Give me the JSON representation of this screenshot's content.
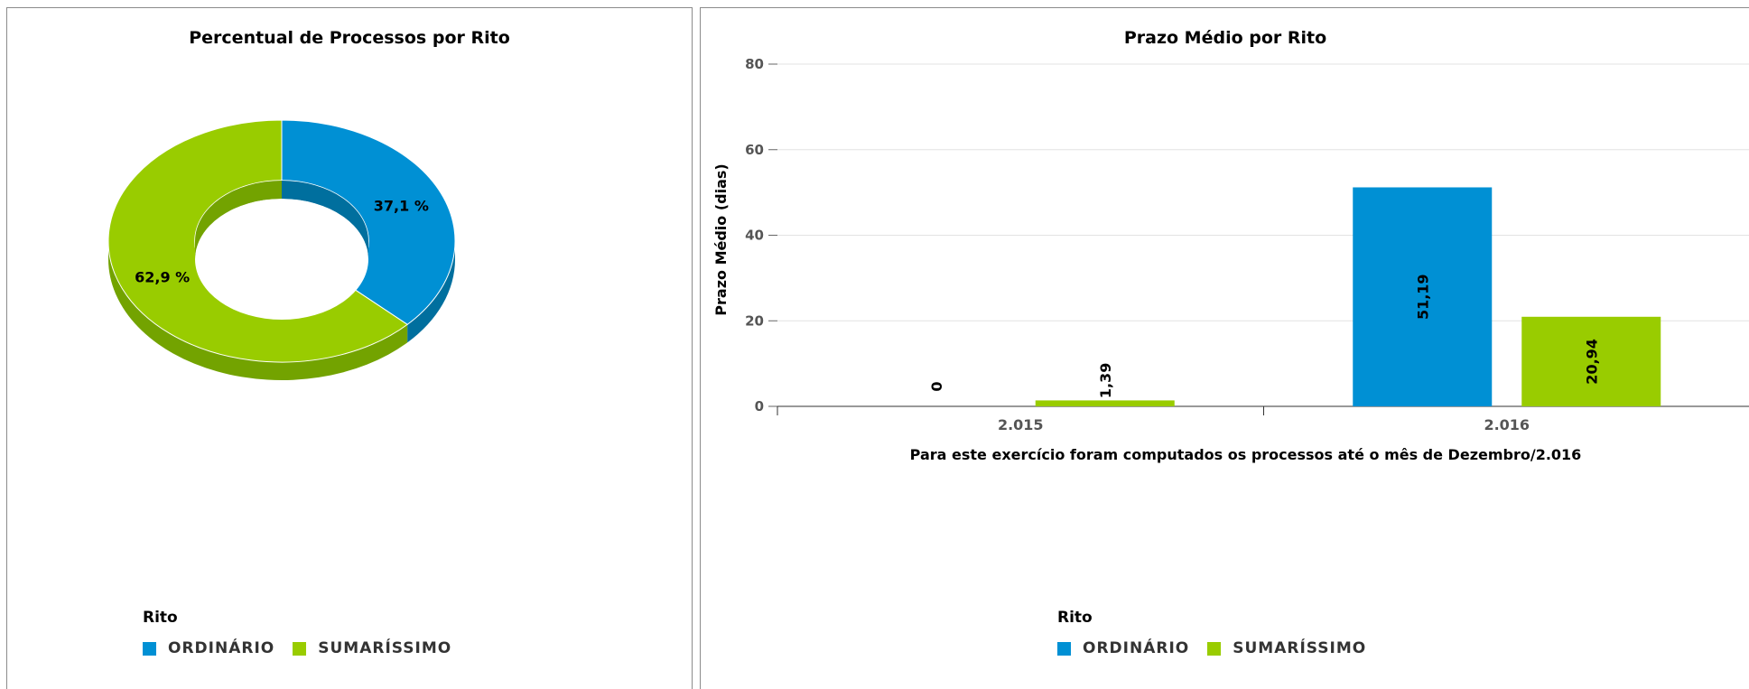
{
  "colors": {
    "ordinario": "#0090d4",
    "sumarissimo": "#99cc00"
  },
  "chart_data": [
    {
      "type": "pie",
      "variant": "donut-3d",
      "title": "Percentual de Processos por Rito",
      "slices": [
        {
          "name": "ORDINÁRIO",
          "value": 37.1,
          "label": "37,1 %"
        },
        {
          "name": "SUMARÍSSIMO",
          "value": 62.9,
          "label": "62,9 %"
        }
      ],
      "legend": {
        "title": "Rito",
        "placement": "bottom-left",
        "items": [
          "ORDINÁRIO",
          "SUMARÍSSIMO"
        ]
      }
    },
    {
      "type": "bar",
      "title": "Prazo Médio por Rito",
      "categories": [
        "2.015",
        "2.016"
      ],
      "series": [
        {
          "name": "ORDINÁRIO",
          "values": [
            0,
            51.19
          ],
          "labels": [
            "0",
            "51,19"
          ]
        },
        {
          "name": "SUMARÍSSIMO",
          "values": [
            1.39,
            20.94
          ],
          "labels": [
            "1,39",
            "20,94"
          ]
        }
      ],
      "ylabel": "Prazo Médio (dias)",
      "xlabel": "Para este exercício foram computados os processos até o mês de Dezembro/2.016",
      "ylim": [
        0,
        80
      ],
      "yticks": [
        "0",
        "20",
        "40",
        "60",
        "80"
      ],
      "grid": true,
      "legend": {
        "title": "Rito",
        "placement": "bottom-left",
        "items": [
          "ORDINÁRIO",
          "SUMARÍSSIMO"
        ]
      }
    }
  ]
}
